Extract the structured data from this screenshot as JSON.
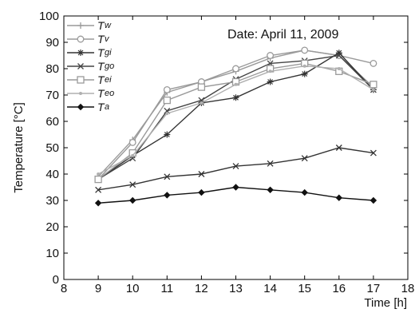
{
  "chart_data": {
    "type": "line",
    "xlabel": "Time [h]",
    "ylabel": "Temperature [°C]",
    "annotation": "Date: April 11, 2009",
    "xlim": [
      8,
      18
    ],
    "ylim": [
      0,
      100
    ],
    "x_ticks": [
      8,
      9,
      10,
      11,
      12,
      13,
      14,
      15,
      16,
      17,
      18
    ],
    "y_ticks": [
      0,
      10,
      20,
      30,
      40,
      50,
      60,
      70,
      80,
      90,
      100
    ],
    "grid": false,
    "legend_position": "top-left",
    "x": [
      9,
      10,
      11,
      12,
      13,
      14,
      15,
      16,
      17
    ],
    "series": [
      {
        "name": "T",
        "sub": "w",
        "marker": "plus",
        "color": "#9a9a9a",
        "values": [
          39,
          53,
          71,
          75,
          79,
          84,
          87,
          85,
          73
        ]
      },
      {
        "name": "T",
        "sub": "v",
        "marker": "circle",
        "color": "#9a9a9a",
        "values": [
          38,
          52,
          72,
          75,
          80,
          85,
          87,
          85,
          82
        ]
      },
      {
        "name": "T",
        "sub": "gi",
        "marker": "asterisk",
        "color": "#333333",
        "values": [
          38,
          47,
          55,
          67,
          69,
          75,
          78,
          86,
          72
        ]
      },
      {
        "name": "T",
        "sub": "go",
        "marker": "x",
        "color": "#444444",
        "values": [
          38,
          46,
          64,
          68,
          76,
          82,
          83,
          85,
          72
        ]
      },
      {
        "name": "T",
        "sub": "ei",
        "marker": "square",
        "color": "#9a9a9a",
        "values": [
          38,
          48,
          68,
          73,
          75,
          80,
          82,
          79,
          74
        ]
      },
      {
        "name": "T",
        "sub": "eo",
        "marker": "dot",
        "color": "#b0b0b0",
        "values": [
          40,
          47,
          63,
          67,
          74,
          79,
          81,
          80,
          72
        ]
      },
      {
        "name": "T",
        "sub": "a",
        "marker": "diamond",
        "color": "#111111",
        "values": [
          29,
          30,
          32,
          33,
          35,
          34,
          33,
          31,
          30
        ]
      },
      {
        "name": "",
        "sub": "",
        "marker": "x",
        "color": "#333333",
        "values": [
          34,
          36,
          39,
          40,
          43,
          44,
          46,
          50,
          48
        ]
      }
    ]
  }
}
